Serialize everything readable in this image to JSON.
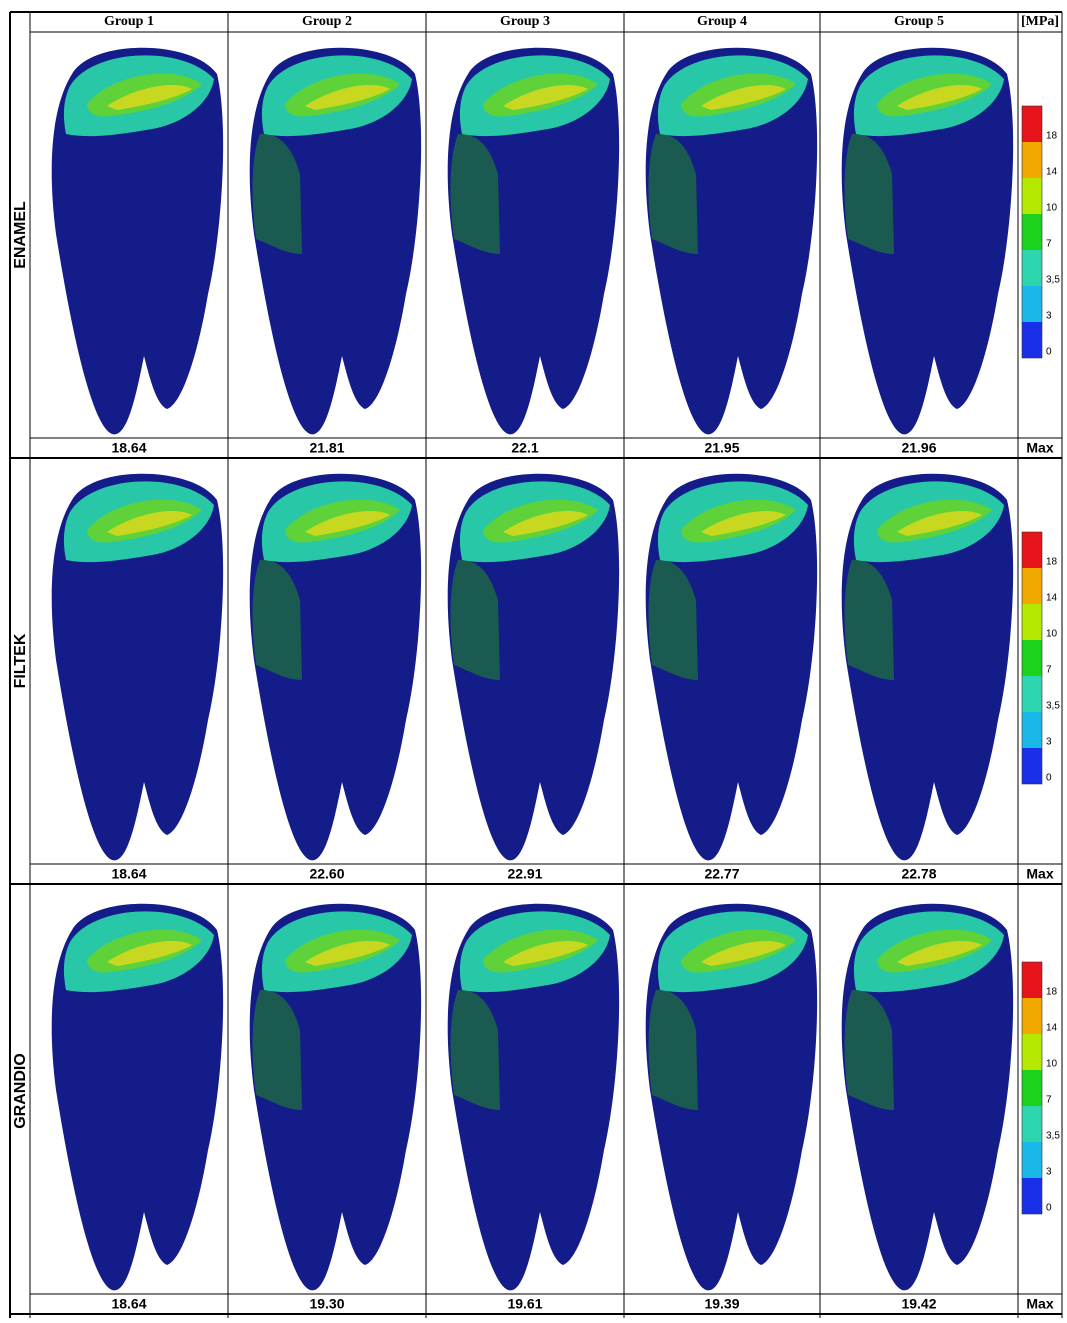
{
  "header": {
    "columns": [
      "Group 1",
      "Group 2",
      "Group 3",
      "Group 4",
      "Group 5"
    ],
    "unit": "[MPa]"
  },
  "rows": [
    {
      "label": "ENAMEL",
      "max_values": [
        "18.64",
        "21.81",
        "22.1",
        "21.95",
        "21.96"
      ],
      "max_label": "Max"
    },
    {
      "label": "FILTEK",
      "max_values": [
        "18.64",
        "22.60",
        "22.91",
        "22.77",
        "22.78"
      ],
      "max_label": "Max"
    },
    {
      "label": "GRANDIO",
      "max_values": [
        "18.64",
        "19.30",
        "19.61",
        "19.39",
        "19.42"
      ],
      "max_label": "Max"
    }
  ],
  "legend": {
    "ticks": [
      "18",
      "14",
      "10",
      "7",
      "3,5",
      "3",
      "0"
    ]
  }
}
